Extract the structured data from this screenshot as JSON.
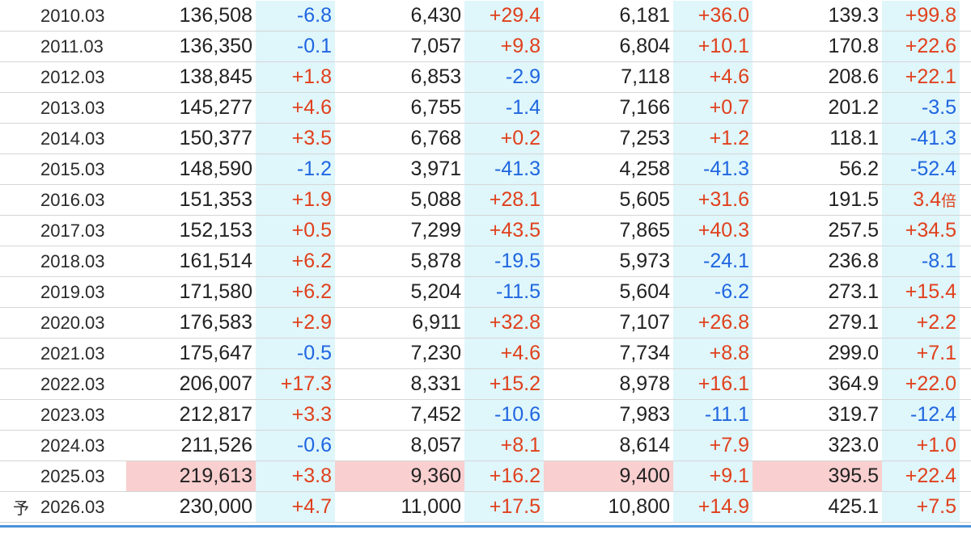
{
  "rows": [
    {
      "year": "2010.03",
      "forecast": "",
      "v1": "136,508",
      "c1": "-6.8",
      "v2": "6,430",
      "c2": "+29.4",
      "v3": "6,181",
      "c3": "+36.0",
      "v4": "139.3",
      "c4": "+99.8",
      "hl": false
    },
    {
      "year": "2011.03",
      "forecast": "",
      "v1": "136,350",
      "c1": "-0.1",
      "v2": "7,057",
      "c2": "+9.8",
      "v3": "6,804",
      "c3": "+10.1",
      "v4": "170.8",
      "c4": "+22.6",
      "hl": false
    },
    {
      "year": "2012.03",
      "forecast": "",
      "v1": "138,845",
      "c1": "+1.8",
      "v2": "6,853",
      "c2": "-2.9",
      "v3": "7,118",
      "c3": "+4.6",
      "v4": "208.6",
      "c4": "+22.1",
      "hl": false
    },
    {
      "year": "2013.03",
      "forecast": "",
      "v1": "145,277",
      "c1": "+4.6",
      "v2": "6,755",
      "c2": "-1.4",
      "v3": "7,166",
      "c3": "+0.7",
      "v4": "201.2",
      "c4": "-3.5",
      "hl": false
    },
    {
      "year": "2014.03",
      "forecast": "",
      "v1": "150,377",
      "c1": "+3.5",
      "v2": "6,768",
      "c2": "+0.2",
      "v3": "7,253",
      "c3": "+1.2",
      "v4": "118.1",
      "c4": "-41.3",
      "hl": false
    },
    {
      "year": "2015.03",
      "forecast": "",
      "v1": "148,590",
      "c1": "-1.2",
      "v2": "3,971",
      "c2": "-41.3",
      "v3": "4,258",
      "c3": "-41.3",
      "v4": "56.2",
      "c4": "-52.4",
      "hl": false
    },
    {
      "year": "2016.03",
      "forecast": "",
      "v1": "151,353",
      "c1": "+1.9",
      "v2": "5,088",
      "c2": "+28.1",
      "v3": "5,605",
      "c3": "+31.6",
      "v4": "191.5",
      "c4": "3.4",
      "c4_suffix": "倍",
      "hl": false
    },
    {
      "year": "2017.03",
      "forecast": "",
      "v1": "152,153",
      "c1": "+0.5",
      "v2": "7,299",
      "c2": "+43.5",
      "v3": "7,865",
      "c3": "+40.3",
      "v4": "257.5",
      "c4": "+34.5",
      "hl": false
    },
    {
      "year": "2018.03",
      "forecast": "",
      "v1": "161,514",
      "c1": "+6.2",
      "v2": "5,878",
      "c2": "-19.5",
      "v3": "5,973",
      "c3": "-24.1",
      "v4": "236.8",
      "c4": "-8.1",
      "hl": false
    },
    {
      "year": "2019.03",
      "forecast": "",
      "v1": "171,580",
      "c1": "+6.2",
      "v2": "5,204",
      "c2": "-11.5",
      "v3": "5,604",
      "c3": "-6.2",
      "v4": "273.1",
      "c4": "+15.4",
      "hl": false
    },
    {
      "year": "2020.03",
      "forecast": "",
      "v1": "176,583",
      "c1": "+2.9",
      "v2": "6,911",
      "c2": "+32.8",
      "v3": "7,107",
      "c3": "+26.8",
      "v4": "279.1",
      "c4": "+2.2",
      "hl": false
    },
    {
      "year": "2021.03",
      "forecast": "",
      "v1": "175,647",
      "c1": "-0.5",
      "v2": "7,230",
      "c2": "+4.6",
      "v3": "7,734",
      "c3": "+8.8",
      "v4": "299.0",
      "c4": "+7.1",
      "hl": false
    },
    {
      "year": "2022.03",
      "forecast": "",
      "v1": "206,007",
      "c1": "+17.3",
      "v2": "8,331",
      "c2": "+15.2",
      "v3": "8,978",
      "c3": "+16.1",
      "v4": "364.9",
      "c4": "+22.0",
      "hl": false
    },
    {
      "year": "2023.03",
      "forecast": "",
      "v1": "212,817",
      "c1": "+3.3",
      "v2": "7,452",
      "c2": "-10.6",
      "v3": "7,983",
      "c3": "-11.1",
      "v4": "319.7",
      "c4": "-12.4",
      "hl": false
    },
    {
      "year": "2024.03",
      "forecast": "",
      "v1": "211,526",
      "c1": "-0.6",
      "v2": "8,057",
      "c2": "+8.1",
      "v3": "8,614",
      "c3": "+7.9",
      "v4": "323.0",
      "c4": "+1.0",
      "hl": false
    },
    {
      "year": "2025.03",
      "forecast": "",
      "v1": "219,613",
      "c1": "+3.8",
      "v2": "9,360",
      "c2": "+16.2",
      "v3": "9,400",
      "c3": "+9.1",
      "v4": "395.5",
      "c4": "+22.4",
      "hl": true
    },
    {
      "year": "2026.03",
      "forecast": "予",
      "v1": "230,000",
      "c1": "+4.7",
      "v2": "11,000",
      "c2": "+17.5",
      "v3": "10,800",
      "c3": "+14.9",
      "v4": "425.1",
      "c4": "+7.5",
      "hl": false
    }
  ],
  "colors": {
    "positive": "#e0401c",
    "negative": "#1f66e0",
    "change_bg": "#dff6fb",
    "highlight_bg": "#f9cfcf",
    "rule": "#4a90d9"
  }
}
